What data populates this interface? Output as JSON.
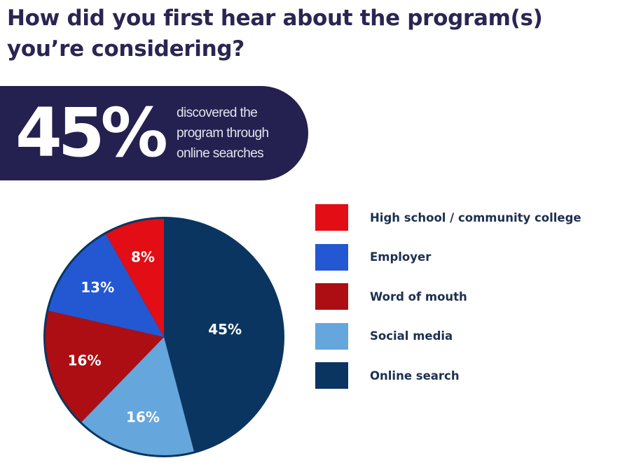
{
  "title": "How did you first hear about the program(s) you’re considering?",
  "banner": {
    "big_value": "45%",
    "text_lines": [
      "discovered the",
      "program through",
      "online searches"
    ]
  },
  "chart_data": {
    "type": "pie",
    "title": "How did you first hear about the program(s) you’re considering?",
    "categories": [
      "Online search",
      "Social media",
      "Word of mouth",
      "Employer",
      "High school / community college"
    ],
    "values": [
      45,
      16,
      16,
      13,
      8
    ],
    "labels": [
      "45%",
      "16%",
      "16%",
      "13%",
      "8%"
    ],
    "colors": [
      "#0b3561",
      "#65a6dc",
      "#ac0e13",
      "#2358d2",
      "#e20d15"
    ],
    "legend_order": [
      4,
      3,
      2,
      1,
      0
    ],
    "legend": "right",
    "start": "top, clockwise"
  }
}
